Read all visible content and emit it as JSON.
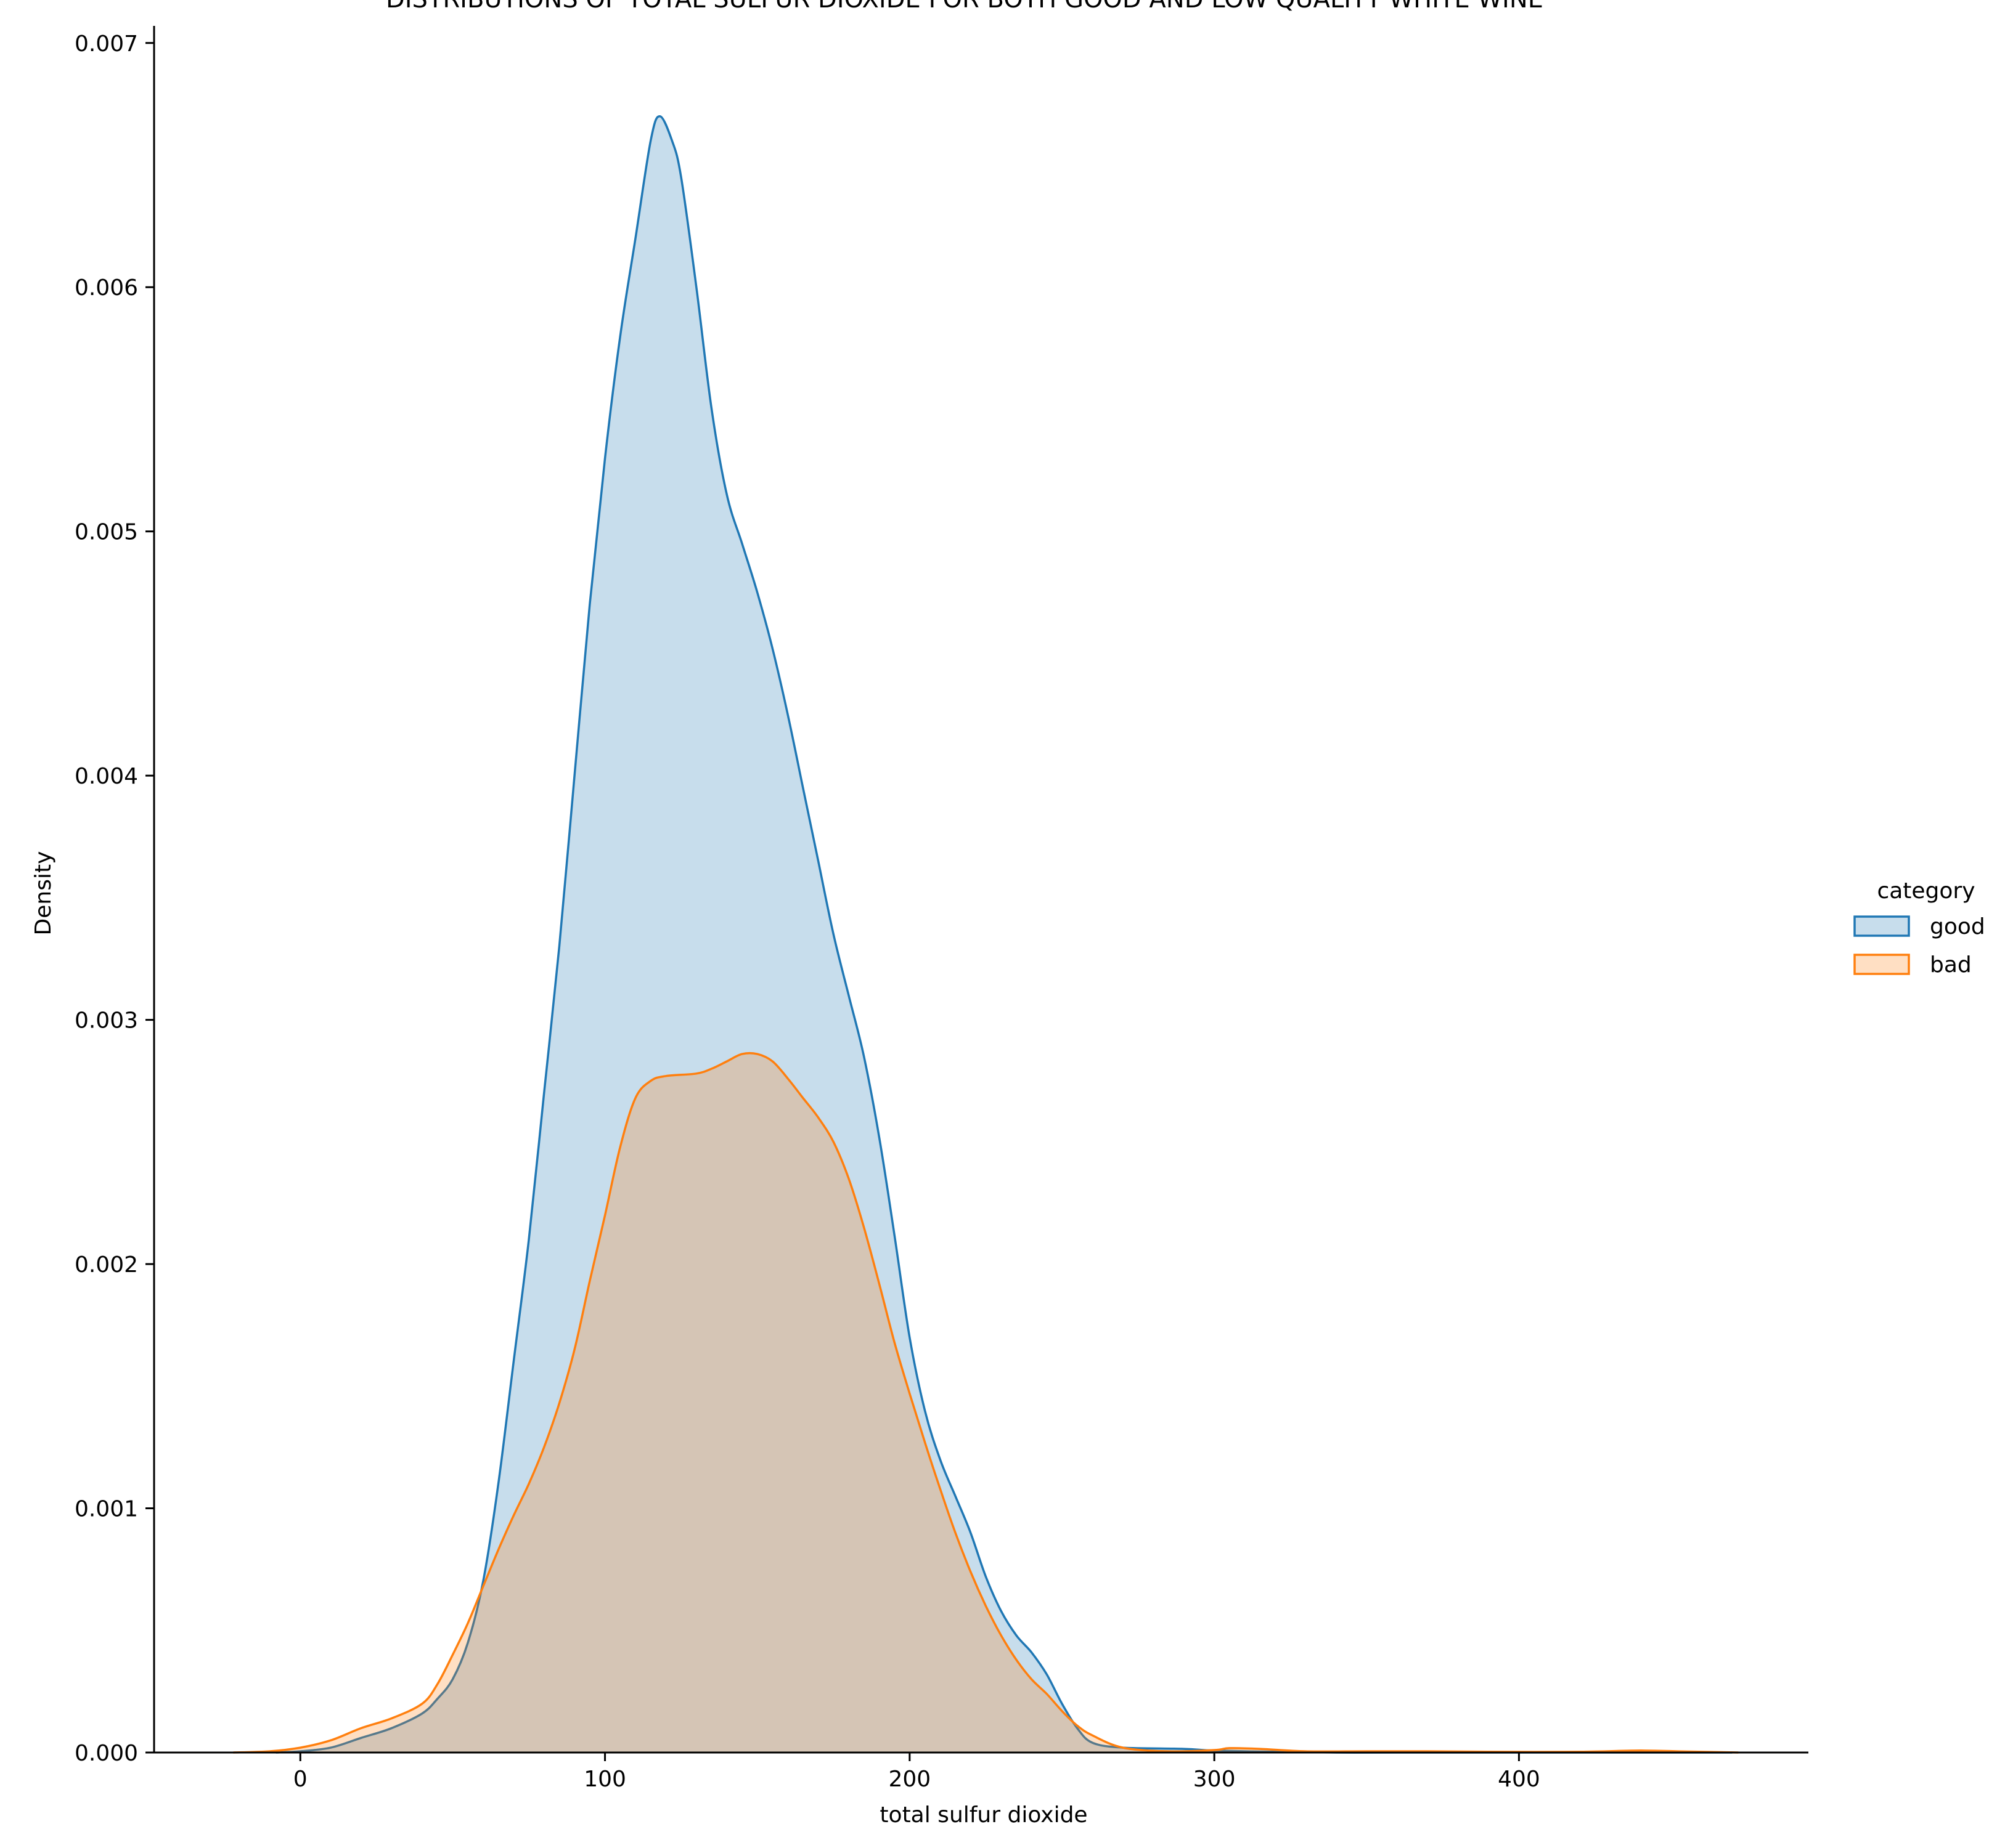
{
  "chart_data": {
    "type": "area",
    "title": "DISTRIBUTIONS OF TOTAL SULFUR DIOXIDE FOR BOTH GOOD AND LOW QUALITY WHITE WINE",
    "xlabel": "total sulfur dioxide",
    "ylabel": "Density",
    "xlim": [
      -48,
      495
    ],
    "ylim": [
      0,
      0.00707
    ],
    "x_ticks": [
      {
        "value": 0,
        "label": "0"
      },
      {
        "value": 100,
        "label": "100"
      },
      {
        "value": 200,
        "label": "200"
      },
      {
        "value": 300,
        "label": "300"
      },
      {
        "value": 400,
        "label": "400"
      }
    ],
    "y_ticks": [
      {
        "value": 0,
        "label": "0.000"
      },
      {
        "value": 0.001,
        "label": "0.001"
      },
      {
        "value": 0.002,
        "label": "0.002"
      },
      {
        "value": 0.003,
        "label": "0.003"
      },
      {
        "value": 0.004,
        "label": "0.004"
      },
      {
        "value": 0.005,
        "label": "0.005"
      },
      {
        "value": 0.006,
        "label": "0.006"
      },
      {
        "value": 0.007,
        "label": "0.007"
      }
    ],
    "grid": false,
    "legend": {
      "title": "category",
      "placement": "right"
    },
    "series": [
      {
        "name": "good",
        "color": "#1f77b4",
        "fill_color": "#1f77b4",
        "fill_opacity": 0.25,
        "points": [
          [
            -8,
            0
          ],
          [
            0,
            5e-06
          ],
          [
            10,
            2e-05
          ],
          [
            20,
            6e-05
          ],
          [
            30,
            0.0001
          ],
          [
            40,
            0.00016
          ],
          [
            45,
            0.00022
          ],
          [
            50,
            0.0003
          ],
          [
            55,
            0.00045
          ],
          [
            60,
            0.0007
          ],
          [
            65,
            0.0011
          ],
          [
            70,
            0.0016
          ],
          [
            75,
            0.0021
          ],
          [
            80,
            0.0027
          ],
          [
            85,
            0.0033
          ],
          [
            90,
            0.004
          ],
          [
            95,
            0.0047
          ],
          [
            100,
            0.0053
          ],
          [
            105,
            0.0058
          ],
          [
            110,
            0.0062
          ],
          [
            115,
            0.0066
          ],
          [
            118,
            0.0067
          ],
          [
            122,
            0.0066
          ],
          [
            125,
            0.00645
          ],
          [
            130,
            0.006
          ],
          [
            135,
            0.0055
          ],
          [
            140,
            0.00515
          ],
          [
            145,
            0.00495
          ],
          [
            150,
            0.00475
          ],
          [
            155,
            0.00452
          ],
          [
            160,
            0.00425
          ],
          [
            165,
            0.00395
          ],
          [
            170,
            0.00365
          ],
          [
            175,
            0.00335
          ],
          [
            180,
            0.0031
          ],
          [
            185,
            0.00285
          ],
          [
            190,
            0.00252
          ],
          [
            195,
            0.00212
          ],
          [
            200,
            0.0017
          ],
          [
            205,
            0.0014
          ],
          [
            210,
            0.0012
          ],
          [
            215,
            0.00105
          ],
          [
            220,
            0.0009
          ],
          [
            225,
            0.00072
          ],
          [
            230,
            0.00058
          ],
          [
            235,
            0.00048
          ],
          [
            240,
            0.00041
          ],
          [
            245,
            0.00032
          ],
          [
            250,
            0.0002
          ],
          [
            255,
            0.0001
          ],
          [
            260,
            4e-05
          ],
          [
            270,
            2e-05
          ],
          [
            290,
            1.5e-05
          ],
          [
            300,
            8e-06
          ],
          [
            320,
            3e-06
          ],
          [
            340,
            0
          ],
          [
            360,
            0
          ],
          [
            400,
            0
          ],
          [
            440,
            0
          ],
          [
            470,
            0
          ]
        ]
      },
      {
        "name": "bad",
        "color": "#ff7f0e",
        "fill_color": "#ff7f0e",
        "fill_opacity": 0.25,
        "points": [
          [
            -22,
            0
          ],
          [
            -10,
            5e-06
          ],
          [
            0,
            2e-05
          ],
          [
            10,
            5e-05
          ],
          [
            20,
            0.0001
          ],
          [
            30,
            0.00014
          ],
          [
            40,
            0.0002
          ],
          [
            45,
            0.00028
          ],
          [
            50,
            0.0004
          ],
          [
            55,
            0.00053
          ],
          [
            60,
            0.00068
          ],
          [
            65,
            0.00083
          ],
          [
            70,
            0.00097
          ],
          [
            75,
            0.0011
          ],
          [
            80,
            0.00125
          ],
          [
            85,
            0.00143
          ],
          [
            90,
            0.00165
          ],
          [
            95,
            0.00193
          ],
          [
            100,
            0.0022
          ],
          [
            105,
            0.00248
          ],
          [
            110,
            0.00268
          ],
          [
            115,
            0.00275
          ],
          [
            120,
            0.00277
          ],
          [
            130,
            0.00278
          ],
          [
            135,
            0.0028
          ],
          [
            140,
            0.00283
          ],
          [
            145,
            0.00286
          ],
          [
            150,
            0.00286
          ],
          [
            155,
            0.00283
          ],
          [
            160,
            0.00276
          ],
          [
            165,
            0.00268
          ],
          [
            170,
            0.0026
          ],
          [
            175,
            0.0025
          ],
          [
            180,
            0.00235
          ],
          [
            185,
            0.00215
          ],
          [
            190,
            0.00192
          ],
          [
            195,
            0.00168
          ],
          [
            200,
            0.00147
          ],
          [
            205,
            0.00127
          ],
          [
            210,
            0.00108
          ],
          [
            215,
            0.0009
          ],
          [
            220,
            0.00074
          ],
          [
            225,
            0.0006
          ],
          [
            230,
            0.00048
          ],
          [
            235,
            0.00038
          ],
          [
            240,
            0.0003
          ],
          [
            245,
            0.00024
          ],
          [
            250,
            0.00017
          ],
          [
            255,
            0.00011
          ],
          [
            260,
            7e-05
          ],
          [
            270,
            2e-05
          ],
          [
            285,
            5e-06
          ],
          [
            300,
            1e-05
          ],
          [
            305,
            1.8e-05
          ],
          [
            315,
            1.5e-05
          ],
          [
            330,
            5e-06
          ],
          [
            350,
            5e-06
          ],
          [
            370,
            5e-06
          ],
          [
            390,
            3e-06
          ],
          [
            420,
            3e-06
          ],
          [
            440,
            8e-06
          ],
          [
            455,
            4e-06
          ],
          [
            472,
            0
          ]
        ]
      }
    ]
  }
}
